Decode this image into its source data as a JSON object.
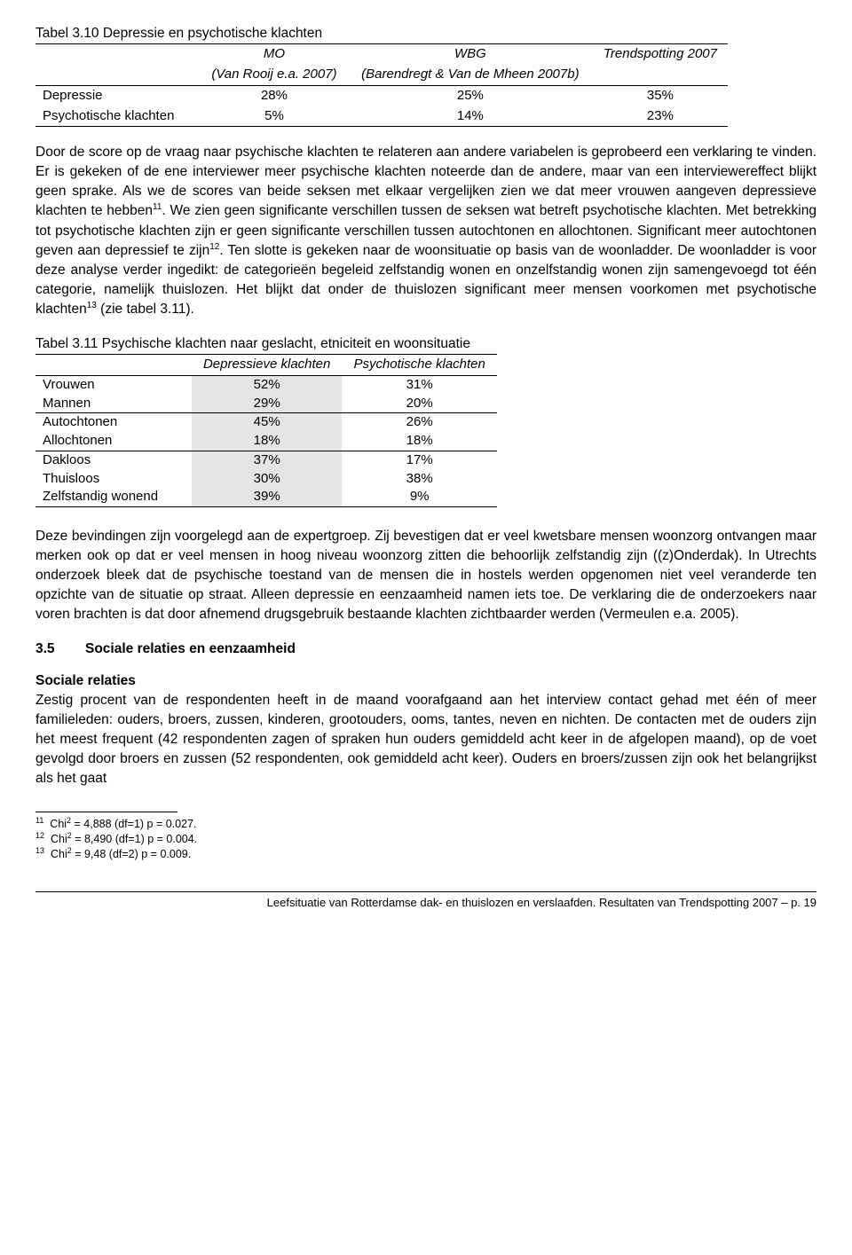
{
  "table1": {
    "title": "Tabel 3.10 Depressie en psychotische klachten",
    "headers": {
      "c1a": "MO",
      "c1b": "(Van Rooij e.a. 2007)",
      "c2a": "WBG",
      "c2b": "(Barendregt & Van de Mheen 2007b)",
      "c3a": "Trendspotting 2007"
    },
    "rows": [
      {
        "label": "Depressie",
        "mo": "28%",
        "wbg": "25%",
        "ts": "35%"
      },
      {
        "label": "Psychotische klachten",
        "mo": "5%",
        "wbg": "14%",
        "ts": "23%"
      }
    ]
  },
  "para1": "Door de score op de vraag naar psychische klachten te relateren aan andere variabelen is geprobeerd een verklaring te vinden. Er is gekeken of de ene interviewer meer psychische klachten noteerde dan de andere, maar van een interviewereffect blijkt geen sprake. Als we de scores van beide seksen met elkaar vergelijken zien we dat meer vrouwen aangeven depressieve klachten te hebben",
  "para1b": ". We zien geen significante verschillen tussen de seksen wat betreft psychotische klachten. Met betrekking tot psychotische klachten zijn er geen significante verschillen tussen autochtonen en allochtonen. Significant meer autochtonen geven aan depressief te zijn",
  "para1c": ". Ten slotte is gekeken naar de woonsituatie op basis van de woonladder. De woonladder is voor deze analyse verder ingedikt: de categorieën begeleid zelfstandig wonen en onzelfstandig wonen zijn samengevoegd tot één categorie, namelijk thuislozen. Het blijkt dat onder de thuislozen significant meer mensen voorkomen met psychotische klachten",
  "para1d": " (zie tabel 3.11).",
  "table2": {
    "title": "Tabel 3.11 Psychische klachten naar geslacht, etniciteit en woonsituatie",
    "headers": {
      "c1": "Depressieve klachten",
      "c2": "Psychotische klachten"
    },
    "rows": [
      {
        "label": "Vrouwen",
        "c1": "52%",
        "c2": "31%",
        "group_top": false
      },
      {
        "label": "Mannen",
        "c1": "29%",
        "c2": "20%",
        "group_top": false
      },
      {
        "label": "Autochtonen",
        "c1": "45%",
        "c2": "26%",
        "group_top": true
      },
      {
        "label": "Allochtonen",
        "c1": "18%",
        "c2": "18%",
        "group_top": false
      },
      {
        "label": "Dakloos",
        "c1": "37%",
        "c2": "17%",
        "group_top": true
      },
      {
        "label": "Thuisloos",
        "c1": "30%",
        "c2": "38%",
        "group_top": false
      },
      {
        "label": "Zelfstandig wonend",
        "c1": "39%",
        "c2": "9%",
        "group_top": false
      }
    ]
  },
  "para2": "Deze bevindingen zijn voorgelegd aan de expertgroep. Zij bevestigen dat er veel kwetsbare mensen woonzorg ontvangen maar merken ook op dat er veel mensen in hoog niveau woonzorg zitten die behoorlijk zelfstandig zijn ((z)Onderdak). In Utrechts onderzoek bleek dat de psychische toestand van de mensen die in hostels werden opgenomen niet veel veranderde ten opzichte van de situatie op straat. Alleen depressie en eenzaamheid namen iets toe. De verklaring die de onderzoekers naar voren brachten is dat door afnemend drugsgebruik bestaande klachten zichtbaarder werden (Vermeulen e.a. 2005).",
  "section": {
    "num": "3.5",
    "title": "Sociale relaties en eenzaamheid"
  },
  "subhead": "Sociale relaties",
  "para3": "Zestig procent van de respondenten heeft in de maand voorafgaand aan het interview contact gehad met één of meer familieleden: ouders, broers, zussen, kinderen, grootouders, ooms, tantes, neven en nichten. De contacten met de ouders zijn het meest frequent (42 respondenten zagen of spraken hun ouders gemiddeld acht keer in de afgelopen maand), op de voet gevolgd door broers en zussen (52 respondenten, ook gemiddeld acht keer). Ouders en broers/zussen zijn ook het belangrijkst als het gaat",
  "footnotes": [
    {
      "num": "11",
      "text": "Chi² = 4,888 (df=1) p = 0.027."
    },
    {
      "num": "12",
      "text": "Chi² = 8,490 (df=1) p = 0.004."
    },
    {
      "num": "13",
      "text": "Chi² = 9,48 (df=2) p = 0.009."
    }
  ],
  "pagefoot": "Leefsituatie van Rotterdamse dak- en thuislozen en verslaafden. Resultaten van Trendspotting 2007 – p. 19"
}
